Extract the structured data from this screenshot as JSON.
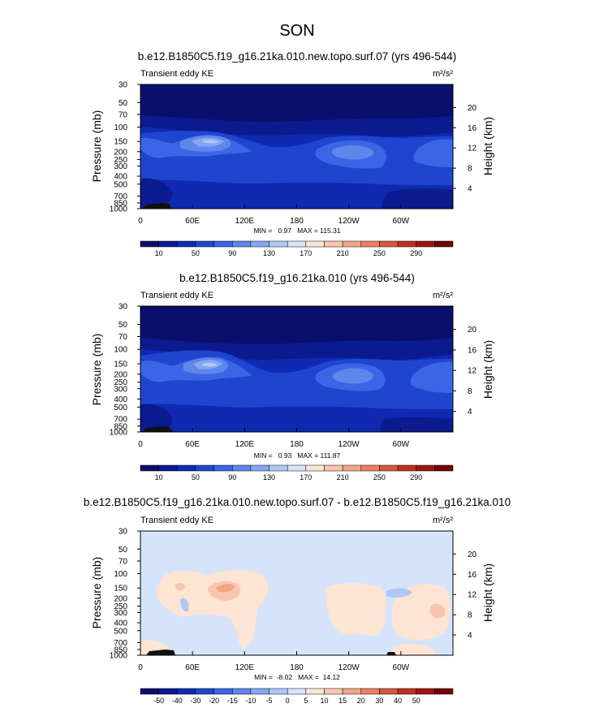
{
  "page_title": "SON",
  "colors": {
    "abs_scale": [
      "#0a0f6e",
      "#0b1a8f",
      "#0f2ab0",
      "#1f45d0",
      "#3a66e6",
      "#5f86ec",
      "#86a6f2",
      "#b0c7f8",
      "#d6e4fb",
      "#fde4d3",
      "#f8c6ae",
      "#f2a587",
      "#e9805f",
      "#d9553b",
      "#c02f22",
      "#9c1512",
      "#6e0808"
    ],
    "diff_scale": [
      "#0a0f6e",
      "#0b1a8f",
      "#0f2ab0",
      "#1f45d0",
      "#3a66e6",
      "#5f86ec",
      "#86a6f2",
      "#b0c7f8",
      "#d6e4fb",
      "#fde4d3",
      "#f8c6ae",
      "#f2a587",
      "#e9805f",
      "#d9553b",
      "#c02f22",
      "#9c1512",
      "#6e0808"
    ]
  },
  "chart_data": [
    {
      "type": "heatmap",
      "title": "b.e12.B1850C5.f19_g16.21ka.010.new.topo.surf.07 (yrs 496-544)",
      "left_label": "Transient eddy KE",
      "units": "m²/s²",
      "ylabel": "Pressure (mb)",
      "ylabel_right": "Height (km)",
      "xticks": [
        "0",
        "60E",
        "120E",
        "180",
        "120W",
        "60W"
      ],
      "xlim": [
        0,
        360
      ],
      "yticks": [
        "30",
        "50",
        "70",
        "100",
        "150",
        "200",
        "250",
        "300",
        "400",
        "500",
        "700",
        "850",
        "1000"
      ],
      "yticks_right": [
        "4",
        "8",
        "12",
        "16",
        "20"
      ],
      "log_pressure": true,
      "ylim": [
        1000,
        30
      ],
      "stats": "MIN =   0.97   MAX = 115.31",
      "min": 0.97,
      "max": 115.31,
      "colorbar_labels": [
        "10",
        "50",
        "90",
        "130",
        "170",
        "210",
        "250",
        "290"
      ],
      "contour_levels": [
        10,
        20,
        30,
        40,
        50,
        60,
        70,
        80,
        90,
        100,
        110,
        120,
        130,
        150,
        170,
        190,
        210,
        230,
        250,
        270,
        290
      ]
    },
    {
      "type": "heatmap",
      "title": "b.e12.B1850C5.f19_g16.21ka.010 (yrs 496-544)",
      "left_label": "Transient eddy KE",
      "units": "m²/s²",
      "ylabel": "Pressure (mb)",
      "ylabel_right": "Height (km)",
      "xticks": [
        "0",
        "60E",
        "120E",
        "180",
        "120W",
        "60W"
      ],
      "xlim": [
        0,
        360
      ],
      "yticks": [
        "30",
        "50",
        "70",
        "100",
        "150",
        "200",
        "250",
        "300",
        "400",
        "500",
        "700",
        "850",
        "1000"
      ],
      "yticks_right": [
        "4",
        "8",
        "12",
        "16",
        "20"
      ],
      "log_pressure": true,
      "ylim": [
        1000,
        30
      ],
      "stats": "MIN =   0.93   MAX = 111.87",
      "min": 0.93,
      "max": 111.87,
      "colorbar_labels": [
        "10",
        "50",
        "90",
        "130",
        "170",
        "210",
        "250",
        "290"
      ],
      "contour_levels": [
        10,
        20,
        30,
        40,
        50,
        60,
        70,
        80,
        90,
        100,
        110,
        120,
        130,
        150,
        170,
        190,
        210,
        230,
        250,
        270,
        290
      ]
    },
    {
      "type": "heatmap",
      "title": "b.e12.B1850C5.f19_g16.21ka.010.new.topo.surf.07 - b.e12.B1850C5.f19_g16.21ka.010",
      "left_label": "Transient eddy KE",
      "units": "m²/s²",
      "ylabel": "Pressure (mb)",
      "ylabel_right": "Height (km)",
      "xticks": [
        "0",
        "60E",
        "120E",
        "180",
        "120W",
        "60W"
      ],
      "xlim": [
        0,
        360
      ],
      "yticks": [
        "30",
        "50",
        "70",
        "100",
        "150",
        "200",
        "250",
        "300",
        "400",
        "500",
        "700",
        "850",
        "1000"
      ],
      "yticks_right": [
        "4",
        "8",
        "12",
        "16",
        "20"
      ],
      "log_pressure": true,
      "ylim": [
        1000,
        30
      ],
      "stats": "MIN =  -8.02   MAX =  14.12",
      "min": -8.02,
      "max": 14.12,
      "colorbar_labels": [
        "-50",
        "-40",
        "-30",
        "-20",
        "-15",
        "-10",
        "-5",
        "0",
        "5",
        "10",
        "15",
        "20",
        "30",
        "40",
        "50"
      ]
    }
  ]
}
